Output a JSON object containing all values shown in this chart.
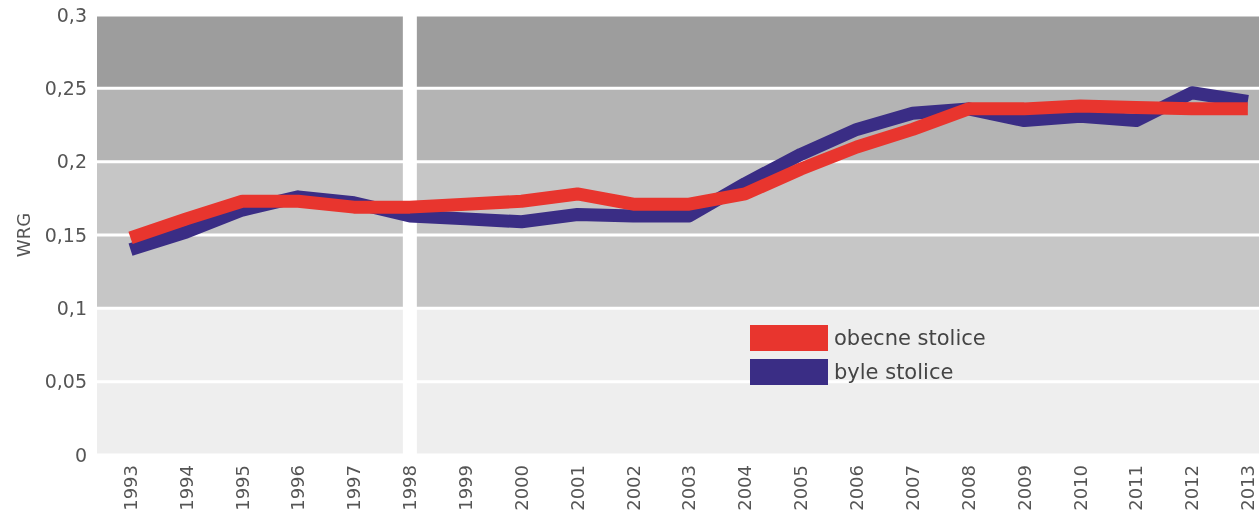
{
  "chart_data": {
    "type": "line",
    "ylabel": "WRG",
    "x": [
      1993,
      1994,
      1995,
      1996,
      1997,
      1998,
      1999,
      2000,
      2001,
      2002,
      2003,
      2004,
      2005,
      2006,
      2007,
      2008,
      2009,
      2010,
      2011,
      2012,
      2013
    ],
    "xlim": [
      1992.4,
      2013.2
    ],
    "xticks": [
      1993,
      1994,
      1995,
      1996,
      1997,
      1998,
      1999,
      2000,
      2001,
      2002,
      2003,
      2004,
      2005,
      2006,
      2007,
      2008,
      2009,
      2010,
      2011,
      2012,
      2013
    ],
    "ylim": [
      0,
      0.3
    ],
    "yticks": [
      0,
      {
        "value": 0.05,
        "label": "0,05"
      },
      {
        "value": 0.1,
        "label": "0,1"
      },
      {
        "value": 0.15,
        "label": "0,15"
      },
      {
        "value": 0.2,
        "label": "0,2"
      },
      {
        "value": 0.25,
        "label": "0,25"
      },
      {
        "value": 0.3,
        "label": "0,3"
      }
    ],
    "grid": "y",
    "legend": "bottom right",
    "line_style": "solid",
    "bands": [
      {
        "axis": "y",
        "from": 0,
        "to": 0.1,
        "color": "#eeeeee"
      },
      {
        "axis": "y",
        "from": 0.1,
        "to": 0.2,
        "color": "#c6c6c6"
      },
      {
        "axis": "y",
        "from": 0.2,
        "to": 0.25,
        "color": "#b4b4b4"
      },
      {
        "axis": "y",
        "from": 0.25,
        "to": 0.3,
        "color": "#9d9d9d"
      }
    ],
    "ref_lines": [
      {
        "axis": "x",
        "value": 1998,
        "color": "#ffffff"
      }
    ],
    "series": [
      {
        "name": "obecne stolice",
        "color": "#e8352e",
        "values": [
          0.148,
          0.161,
          0.173,
          0.173,
          0.169,
          0.169,
          0.171,
          0.173,
          0.178,
          0.171,
          0.171,
          0.178,
          0.195,
          0.21,
          0.222,
          0.236,
          0.236,
          0.238,
          0.237,
          0.236,
          0.236
        ]
      },
      {
        "name": "byle stolice",
        "color": "#3a2d85",
        "values": [
          0.14,
          0.152,
          0.167,
          0.176,
          0.172,
          0.163,
          0.161,
          0.159,
          0.164,
          0.163,
          0.163,
          0.185,
          0.205,
          0.222,
          0.233,
          0.236,
          0.228,
          0.231,
          0.228,
          0.247,
          0.241
        ]
      }
    ]
  }
}
